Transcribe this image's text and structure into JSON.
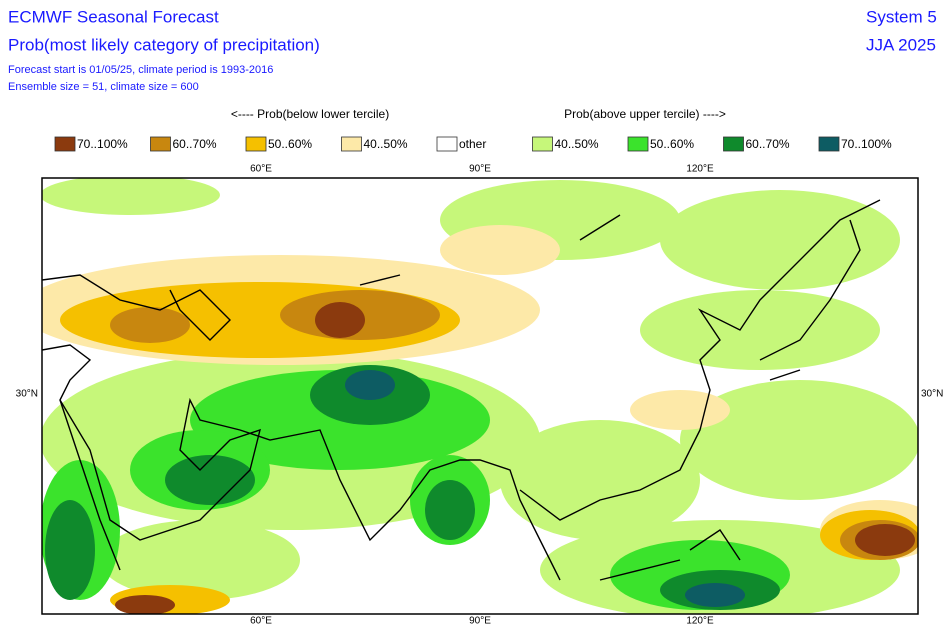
{
  "header": {
    "title": "ECMWF Seasonal Forecast",
    "subtitle": "Prob(most likely category of precipitation)",
    "info": [
      "Forecast start is 01/05/25, climate period is 1993-2016",
      "Ensemble size = 51, climate size = 600"
    ],
    "system": "System 5",
    "season": "JJA 2025"
  },
  "legend": {
    "below_label": "<---- Prob(below lower tercile)",
    "above_label": "Prob(above upper tercile) ---->",
    "items": [
      {
        "label": "70..100%",
        "color": "#8b3a0e"
      },
      {
        "label": "60..70%",
        "color": "#c8870f"
      },
      {
        "label": "50..60%",
        "color": "#f5c000"
      },
      {
        "label": "40..50%",
        "color": "#fde9a8"
      },
      {
        "label": "other",
        "color": "#ffffff"
      },
      {
        "label": "40..50%",
        "color": "#c6f77a"
      },
      {
        "label": "50..60%",
        "color": "#3be32c"
      },
      {
        "label": "60..70%",
        "color": "#0f8a2c"
      },
      {
        "label": "70..100%",
        "color": "#0d5c63"
      }
    ]
  },
  "map": {
    "top_labels": [
      "60°E",
      "90°E",
      "120°E"
    ],
    "bottom_labels": [
      "60°E",
      "90°E",
      "120°E"
    ],
    "left_label": "30°N",
    "right_label": "30°N"
  }
}
